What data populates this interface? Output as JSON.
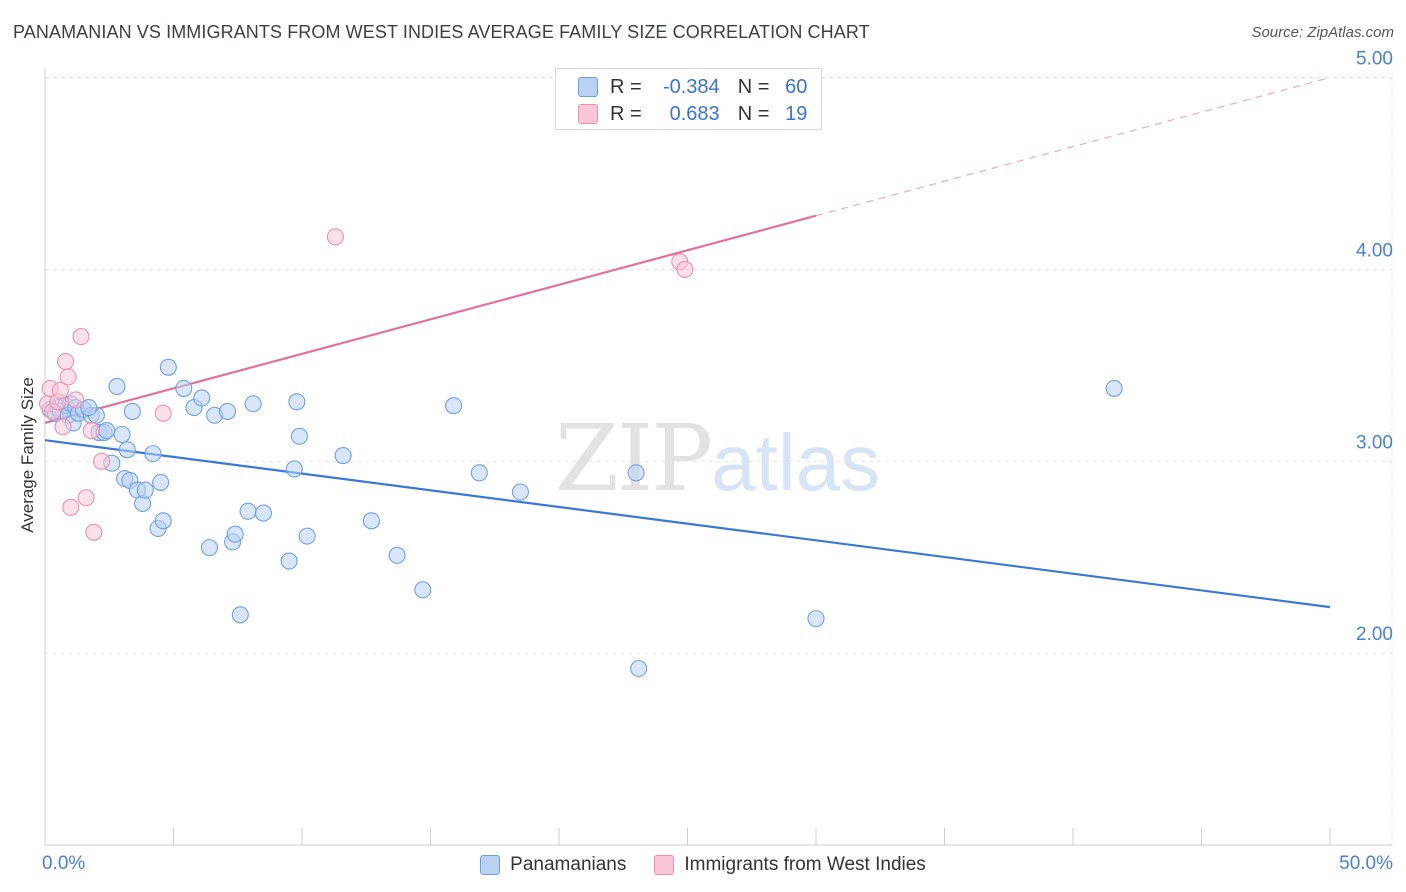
{
  "title": "PANAMANIAN VS IMMIGRANTS FROM WEST INDIES AVERAGE FAMILY SIZE CORRELATION CHART",
  "source": "Source: ZipAtlas.com",
  "watermark": {
    "zip": "ZIP",
    "atlas": "atlas"
  },
  "legend": {
    "rows": [
      {
        "r_label": "R =",
        "r_value": "-0.384",
        "n_label": "N =",
        "n_value": "60",
        "color": "#6fa0e6",
        "fill": "#b9d2f4"
      },
      {
        "r_label": "R =",
        "r_value": "0.683",
        "n_label": "N =",
        "n_value": "19",
        "color": "#ee8fb0",
        "fill": "#f8c6d7"
      }
    ]
  },
  "bottom_legend": [
    {
      "label": "Panamanians",
      "color": "#6fa0e6",
      "fill": "#b9d2f4"
    },
    {
      "label": "Immigrants from West Indies",
      "color": "#ee8fb0",
      "fill": "#f8c6d7"
    }
  ],
  "chart_data": {
    "type": "scatter",
    "title": "PANAMANIAN VS IMMIGRANTS FROM WEST INDIES AVERAGE FAMILY SIZE CORRELATION CHART",
    "xlabel": "",
    "ylabel": "Average Family Size",
    "xlim": [
      0,
      50
    ],
    "ylim": [
      1.0,
      5.05
    ],
    "x_tick_labels": [
      {
        "value": 0,
        "label": "0.0%"
      },
      {
        "value": 50,
        "label": "50.0%"
      }
    ],
    "y_ticks": [
      {
        "value": 2.0,
        "label": "2.00"
      },
      {
        "value": 3.0,
        "label": "3.00"
      },
      {
        "value": 4.0,
        "label": "4.00"
      },
      {
        "value": 5.0,
        "label": "5.00"
      }
    ],
    "x_minor_ticks": [
      0,
      5,
      10,
      15,
      20,
      25,
      30,
      35,
      40,
      45,
      50
    ],
    "grid": true,
    "legend_position": "top-center",
    "series": [
      {
        "name": "Panamanians",
        "color": "#3a78d8",
        "point_color": "#6fa0e6",
        "point_fill": "#b9d2f4",
        "trend": {
          "x": [
            0,
            50
          ],
          "y": [
            3.11,
            2.24
          ],
          "dashed_from": null
        },
        "points": [
          [
            0.2,
            3.27
          ],
          [
            0.4,
            3.25
          ],
          [
            0.5,
            3.28
          ],
          [
            0.6,
            3.26
          ],
          [
            0.8,
            3.29
          ],
          [
            0.9,
            3.24
          ],
          [
            1.0,
            3.3
          ],
          [
            1.1,
            3.2
          ],
          [
            1.2,
            3.28
          ],
          [
            1.3,
            3.25
          ],
          [
            1.5,
            3.27
          ],
          [
            1.8,
            3.24
          ],
          [
            2.0,
            3.24
          ],
          [
            2.1,
            3.15
          ],
          [
            2.3,
            3.15
          ],
          [
            2.6,
            2.99
          ],
          [
            2.8,
            3.39
          ],
          [
            3.0,
            3.14
          ],
          [
            3.1,
            2.91
          ],
          [
            3.2,
            3.06
          ],
          [
            3.3,
            2.9
          ],
          [
            3.4,
            3.26
          ],
          [
            3.6,
            2.85
          ],
          [
            3.8,
            2.78
          ],
          [
            3.9,
            2.85
          ],
          [
            4.2,
            3.04
          ],
          [
            4.4,
            2.65
          ],
          [
            4.5,
            2.89
          ],
          [
            4.6,
            2.69
          ],
          [
            4.8,
            3.49
          ],
          [
            5.4,
            3.38
          ],
          [
            5.8,
            3.28
          ],
          [
            6.1,
            3.33
          ],
          [
            6.4,
            2.55
          ],
          [
            6.6,
            3.24
          ],
          [
            7.1,
            3.26
          ],
          [
            7.3,
            2.58
          ],
          [
            7.4,
            2.62
          ],
          [
            7.6,
            2.2
          ],
          [
            7.9,
            2.74
          ],
          [
            8.1,
            3.3
          ],
          [
            8.5,
            2.73
          ],
          [
            9.5,
            2.48
          ],
          [
            9.7,
            2.96
          ],
          [
            9.8,
            3.31
          ],
          [
            9.9,
            3.13
          ],
          [
            10.2,
            2.61
          ],
          [
            11.6,
            3.03
          ],
          [
            12.7,
            2.69
          ],
          [
            13.7,
            2.51
          ],
          [
            14.7,
            2.33
          ],
          [
            15.9,
            3.29
          ],
          [
            16.9,
            2.94
          ],
          [
            18.5,
            2.84
          ],
          [
            23.0,
            2.94
          ],
          [
            23.1,
            1.92
          ],
          [
            30.0,
            2.18
          ],
          [
            41.6,
            3.38
          ],
          [
            2.4,
            3.16
          ],
          [
            1.7,
            3.28
          ]
        ]
      },
      {
        "name": "Immigrants from West Indies",
        "color": "#e3709a",
        "point_color": "#ee8fb0",
        "point_fill": "#f8c6d7",
        "trend": {
          "x": [
            0,
            50
          ],
          "y": [
            3.2,
            5.0
          ],
          "dashed_from": 30
        },
        "points": [
          [
            0.1,
            3.3
          ],
          [
            0.2,
            3.38
          ],
          [
            0.3,
            3.26
          ],
          [
            0.5,
            3.31
          ],
          [
            0.6,
            3.37
          ],
          [
            0.7,
            3.18
          ],
          [
            0.8,
            3.52
          ],
          [
            0.9,
            3.44
          ],
          [
            1.0,
            2.76
          ],
          [
            1.2,
            3.32
          ],
          [
            1.4,
            3.65
          ],
          [
            1.6,
            2.81
          ],
          [
            1.9,
            2.63
          ],
          [
            2.2,
            3.0
          ],
          [
            4.6,
            3.25
          ],
          [
            11.3,
            4.17
          ],
          [
            24.7,
            4.04
          ],
          [
            24.9,
            4.0
          ],
          [
            1.8,
            3.16
          ]
        ]
      }
    ]
  }
}
